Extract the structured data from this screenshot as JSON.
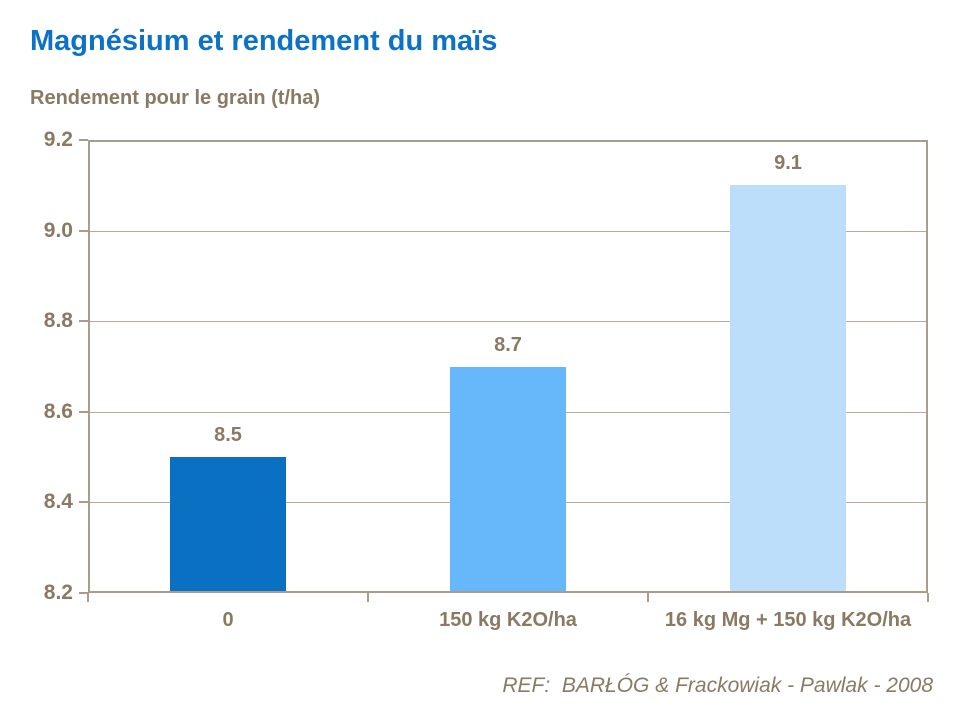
{
  "title": "Magnésium et rendement du maïs",
  "subtitle": "Rendement pour le grain (t/ha)",
  "reference": "REF:  BARŁÓG & Frackowiak - Pawlak - 2008",
  "colors": {
    "title_blue": "#0b72c8",
    "axis_text": "#8a7a63",
    "gridline": "#b5aa99",
    "frame": "#a89d8a",
    "background": "#ffffff"
  },
  "chart_data": {
    "type": "bar",
    "title": "Magnésium et rendement du maïs",
    "ylabel": "Rendement pour le grain (t/ha)",
    "xlabel": "",
    "categories": [
      "0",
      "150 kg K2O/ha",
      "16 kg Mg + 150 kg K2O/ha"
    ],
    "values": [
      8.5,
      8.7,
      9.1
    ],
    "value_labels": [
      "8.5",
      "8.7",
      "9.1"
    ],
    "bar_colors": [
      "#0a71c2",
      "#66b8fa",
      "#bcdefa"
    ],
    "ylim": [
      8.2,
      9.2
    ],
    "ytick_step": 0.2,
    "ytick_labels": [
      "8.2",
      "8.4",
      "8.6",
      "8.8",
      "9.0",
      "9.2"
    ],
    "grid": true,
    "legend": false,
    "annotation": "REF:  BARŁÓG & Frackowiak - Pawlak - 2008"
  }
}
